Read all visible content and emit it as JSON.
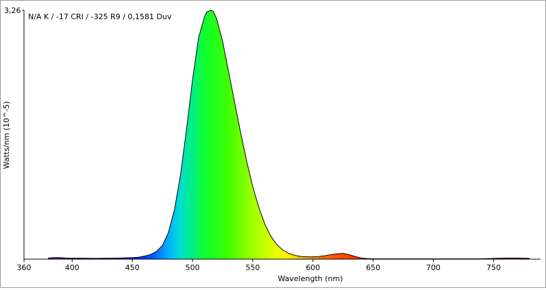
{
  "chart_data": {
    "type": "area",
    "title": "",
    "annotation": "N/A K / -17 CRI / -325 R9 / 0,1581 Duv",
    "xlabel": "Wavelength (nm)",
    "ylabel": "Watts/nm (10^-5)",
    "xlim": [
      360,
      789
    ],
    "ylim": [
      0,
      3.26
    ],
    "y_tick_label": "3,26",
    "x_ticks": [
      360,
      400,
      450,
      500,
      550,
      600,
      650,
      700,
      750
    ],
    "grid": false,
    "legend": "none",
    "series": [
      {
        "x": [
          380,
          385,
          390,
          395,
          400,
          405,
          410,
          420,
          430,
          440,
          450,
          455,
          460,
          465,
          470,
          475,
          480,
          485,
          490,
          495,
          500,
          505,
          510,
          512,
          515,
          517,
          520,
          525,
          530,
          535,
          540,
          545,
          550,
          555,
          560,
          565,
          570,
          575,
          580,
          585,
          590,
          595,
          600,
          605,
          610,
          615,
          620,
          625,
          630,
          635,
          640,
          645,
          650,
          660,
          670,
          680,
          700,
          720,
          740,
          750,
          760,
          770,
          780
        ],
        "values": [
          0.015,
          0.02,
          0.02,
          0.015,
          0.012,
          0.012,
          0.012,
          0.01,
          0.012,
          0.015,
          0.02,
          0.025,
          0.04,
          0.06,
          0.1,
          0.18,
          0.35,
          0.65,
          1.1,
          1.7,
          2.35,
          2.9,
          3.18,
          3.24,
          3.26,
          3.25,
          3.15,
          2.85,
          2.45,
          2.05,
          1.65,
          1.28,
          0.95,
          0.68,
          0.46,
          0.3,
          0.19,
          0.12,
          0.075,
          0.05,
          0.035,
          0.03,
          0.03,
          0.035,
          0.045,
          0.06,
          0.07,
          0.075,
          0.06,
          0.035,
          0.015,
          0.008,
          0.005,
          0.004,
          0.004,
          0.004,
          0.004,
          0.004,
          0.005,
          0.01,
          0.015,
          0.015,
          0.01
        ]
      }
    ]
  }
}
